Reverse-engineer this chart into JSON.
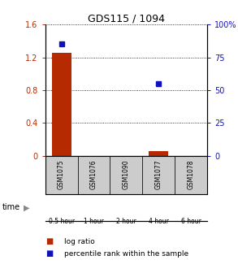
{
  "title": "GDS115 / 1094",
  "samples": [
    "GSM1075",
    "GSM1076",
    "GSM1090",
    "GSM1077",
    "GSM1078"
  ],
  "time_labels": [
    "0.5 hour",
    "1 hour",
    "2 hour",
    "4 hour",
    "6 hour"
  ],
  "log_ratio": [
    1.26,
    0.0,
    0.0,
    0.055,
    0.0
  ],
  "percentile": [
    85.0,
    0.0,
    0.0,
    55.0,
    0.0
  ],
  "ylim_left": [
    0,
    1.6
  ],
  "ylim_right": [
    0,
    100
  ],
  "yticks_left": [
    0,
    0.4,
    0.8,
    1.2,
    1.6
  ],
  "yticks_right": [
    0,
    25,
    50,
    75,
    100
  ],
  "yticklabels_right": [
    "0",
    "25",
    "50",
    "75",
    "100%"
  ],
  "bar_color": "#b52a00",
  "dot_color": "#1111bb",
  "grid_color": "#000000",
  "time_colors": [
    "#ddffd d",
    "#aaffaa",
    "#aaffaa",
    "#44dd44",
    "#44dd44"
  ],
  "sample_bg": "#cccccc",
  "legend_log": "log ratio",
  "legend_pct": "percentile rank within the sample",
  "xlabel_time": "time",
  "bar_width": 0.6
}
